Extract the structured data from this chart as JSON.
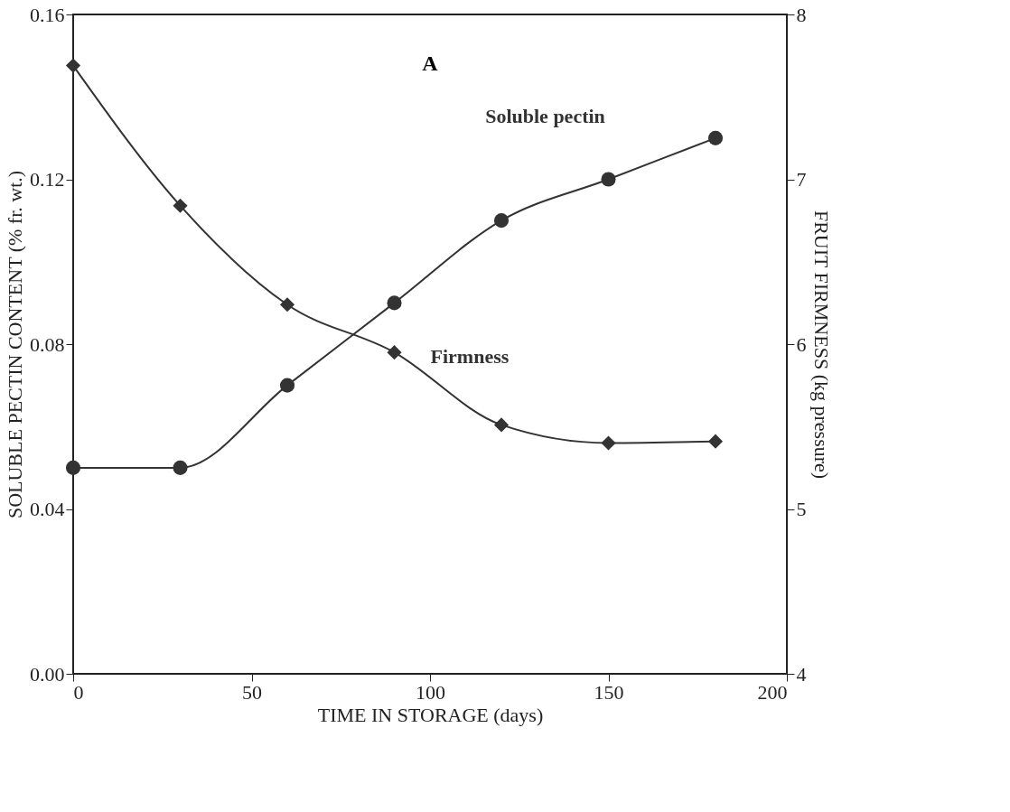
{
  "chart_data": {
    "type": "line",
    "xlabel": "TIME IN STORAGE (days)",
    "ylabel": "SOLUBLE PECTIN CONTENT (% fr. wt.)",
    "y2label": "FRUIT FIRMNESS (kg pressure)",
    "x": [
      0,
      30,
      60,
      90,
      120,
      150,
      180
    ],
    "series": [
      {
        "name": "Soluble pectin",
        "color": "#333333",
        "marker": "circle",
        "values": [
          0.05,
          0.05,
          0.07,
          0.09,
          0.11,
          0.12,
          0.13
        ]
      },
      {
        "name": "Firmness",
        "color": "#333333",
        "marker": "diamond",
        "axis": "y2",
        "values": [
          7.69,
          6.84,
          6.24,
          5.95,
          5.51,
          5.4,
          5.41
        ]
      }
    ],
    "xlim": [
      0,
      200
    ],
    "xticks": [
      0,
      50,
      100,
      150,
      200
    ],
    "ylim": [
      0,
      0.16
    ],
    "yticks": [
      {
        "value": 0,
        "label": "0.00"
      },
      {
        "value": 0.04,
        "label": "0.04"
      },
      {
        "value": 0.08,
        "label": "0.08"
      },
      {
        "value": 0.12,
        "label": "0.12"
      },
      {
        "value": 0.16,
        "label": "0.16"
      }
    ],
    "y2lim": [
      4,
      8
    ],
    "y2ticks": [
      4,
      5,
      6,
      7,
      8
    ],
    "annotations": [
      "A"
    ],
    "grid": false,
    "legend": false,
    "line_style": "solid"
  }
}
